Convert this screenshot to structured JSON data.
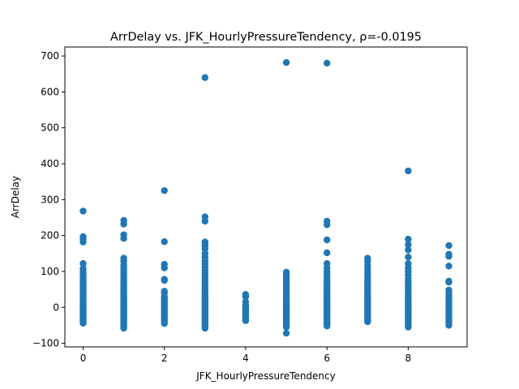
{
  "chart_data": {
    "type": "scatter",
    "title": "ArrDelay vs. JFK_HourlyPressureTendency, ρ=-0.0195",
    "xlabel": "JFK_HourlyPressureTendency",
    "ylabel": "ArrDelay",
    "xlim": [
      -0.45,
      9.45
    ],
    "ylim": [
      -110,
      725
    ],
    "xticks": [
      0,
      2,
      4,
      6,
      8
    ],
    "yticks": [
      -100,
      0,
      100,
      200,
      300,
      400,
      500,
      600,
      700
    ],
    "grid": false,
    "marker_color": "#1f77b4",
    "points": [
      {
        "x": 0,
        "y": [
          268,
          197,
          192,
          182,
          122,
          108,
          100,
          93,
          88,
          80,
          74,
          68,
          62,
          57,
          52,
          47,
          42,
          37,
          33,
          29,
          25,
          21,
          18,
          15,
          12,
          9,
          6,
          3,
          0,
          -3,
          -6,
          -9,
          -12,
          -15,
          -18,
          -21,
          -24,
          -27,
          -30,
          -33,
          -36,
          -40,
          -44
        ]
      },
      {
        "x": 1,
        "y": [
          242,
          232,
          202,
          192,
          137,
          128,
          118,
          110,
          102,
          95,
          88,
          82,
          76,
          70,
          64,
          58,
          53,
          48,
          43,
          38,
          34,
          30,
          26,
          22,
          18,
          15,
          12,
          9,
          6,
          3,
          0,
          -3,
          -6,
          -9,
          -12,
          -15,
          -18,
          -21,
          -24,
          -27,
          -30,
          -34,
          -38,
          -42,
          -46,
          -50,
          -54,
          -58
        ]
      },
      {
        "x": 2,
        "y": [
          325,
          183,
          120,
          110,
          78,
          75,
          45,
          40,
          30,
          25,
          20,
          15,
          10,
          5,
          0,
          -5,
          -10,
          -15,
          -20,
          -25,
          -30,
          -35,
          -40,
          -45
        ]
      },
      {
        "x": 3,
        "y": [
          640,
          252,
          240,
          182,
          176,
          170,
          162,
          150,
          140,
          130,
          121,
          112,
          104,
          96,
          88,
          80,
          73,
          66,
          60,
          54,
          48,
          42,
          37,
          32,
          27,
          22,
          18,
          14,
          10,
          6,
          2,
          -2,
          -6,
          -10,
          -14,
          -18,
          -22,
          -26,
          -30,
          -34,
          -38,
          -42,
          -46,
          -50,
          -54,
          -58
        ]
      },
      {
        "x": 4,
        "y": [
          36,
          30,
          15,
          5,
          0,
          -5,
          -10,
          -15,
          -20,
          -25,
          -30,
          -37
        ]
      },
      {
        "x": 5,
        "y": [
          682,
          98,
          90,
          82,
          75,
          68,
          62,
          56,
          50,
          44,
          38,
          33,
          28,
          23,
          18,
          14,
          10,
          6,
          2,
          -2,
          -6,
          -10,
          -14,
          -18,
          -22,
          -26,
          -30,
          -34,
          -38,
          -42,
          -46,
          -50,
          -55,
          -72
        ]
      },
      {
        "x": 6,
        "y": [
          680,
          240,
          230,
          188,
          152,
          122,
          110,
          100,
          92,
          85,
          78,
          72,
          66,
          60,
          54,
          48,
          43,
          38,
          33,
          28,
          24,
          20,
          16,
          12,
          8,
          4,
          0,
          -4,
          -8,
          -12,
          -16,
          -20,
          -24,
          -28,
          -32,
          -36,
          -40,
          -44,
          -48,
          -52
        ]
      },
      {
        "x": 7,
        "y": [
          137,
          128,
          118,
          108,
          98,
          90,
          82,
          74,
          66,
          58,
          50,
          44,
          38,
          32,
          26,
          20,
          15,
          10,
          5,
          0,
          -5,
          -10,
          -15,
          -20,
          -25,
          -30,
          -35,
          -40
        ]
      },
      {
        "x": 8,
        "y": [
          380,
          190,
          175,
          160,
          140,
          122,
          110,
          100,
          90,
          80,
          72,
          64,
          56,
          48,
          41,
          34,
          28,
          22,
          16,
          10,
          5,
          0,
          -5,
          -10,
          -15,
          -20,
          -25,
          -30,
          -35,
          -40,
          -45,
          -50,
          -55
        ]
      },
      {
        "x": 9,
        "y": [
          172,
          148,
          142,
          115,
          73,
          70,
          48,
          40,
          32,
          25,
          18,
          12,
          6,
          0,
          -5,
          -10,
          -15,
          -20,
          -25,
          -30,
          -35,
          -40,
          -45,
          -50
        ]
      }
    ]
  }
}
